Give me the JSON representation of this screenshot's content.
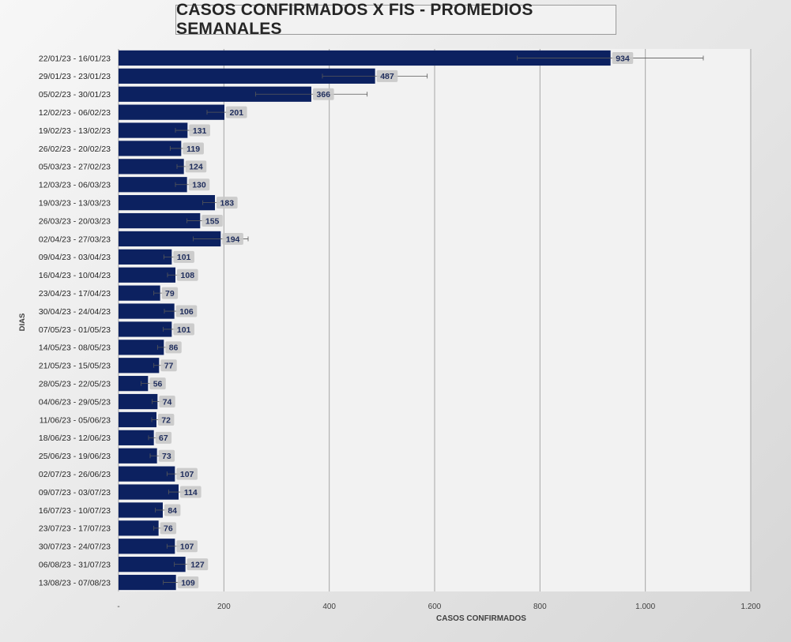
{
  "chart_data": {
    "type": "bar",
    "orientation": "horizontal",
    "title": "CASOS CONFIRMADOS X FIS - PROMEDIOS SEMANALES",
    "xlabel": "CASOS CONFIRMADOS",
    "ylabel": "DIAS",
    "xlim": [
      0,
      1200
    ],
    "xticks": [
      0,
      200,
      400,
      600,
      800,
      1000,
      1200
    ],
    "xtick_labels": [
      "-",
      "200",
      "400",
      "600",
      "800",
      "1.000",
      "1.200"
    ],
    "grid": "vertical",
    "bar_color": "#0c2160",
    "error_bars": true,
    "categories": [
      "22/01/23 - 16/01/23",
      "29/01/23 - 23/01/23",
      "05/02/23 - 30/01/23",
      "12/02/23 - 06/02/23",
      "19/02/23 - 13/02/23",
      "26/02/23 - 20/02/23",
      "05/03/23 - 27/02/23",
      "12/03/23 - 06/03/23",
      "19/03/23 - 13/03/23",
      "26/03/23 - 20/03/23",
      "02/04/23 - 27/03/23",
      "09/04/23 - 03/04/23",
      "16/04/23 - 10/04/23",
      "23/04/23 - 17/04/23",
      "30/04/23 - 24/04/23",
      "07/05/23 - 01/05/23",
      "14/05/23 - 08/05/23",
      "21/05/23 - 15/05/23",
      "28/05/23 - 22/05/23",
      "04/06/23 - 29/05/23",
      "11/06/23 - 05/06/23",
      "18/06/23 - 12/06/23",
      "25/06/23 - 19/06/23",
      "02/07/23 - 26/06/23",
      "09/07/23 - 03/07/23",
      "16/07/23 - 10/07/23",
      "23/07/23 - 17/07/23",
      "30/07/23 - 24/07/23",
      "06/08/23 - 31/07/23",
      "13/08/23 - 07/08/23"
    ],
    "values": [
      934,
      487,
      366,
      201,
      131,
      119,
      124,
      130,
      183,
      155,
      194,
      101,
      108,
      79,
      106,
      101,
      86,
      77,
      56,
      74,
      72,
      67,
      73,
      107,
      114,
      84,
      76,
      107,
      127,
      109
    ],
    "error_low": [
      757,
      387,
      260,
      168,
      108,
      98,
      111,
      108,
      160,
      130,
      142,
      86,
      93,
      67,
      87,
      85,
      74,
      67,
      43,
      64,
      63,
      57,
      60,
      92,
      95,
      70,
      67,
      92,
      106,
      85
    ],
    "error_high": [
      1110,
      586,
      472,
      234,
      154,
      140,
      137,
      152,
      206,
      180,
      246,
      116,
      123,
      91,
      125,
      117,
      98,
      87,
      69,
      84,
      81,
      77,
      86,
      122,
      133,
      98,
      85,
      122,
      148,
      133
    ]
  }
}
